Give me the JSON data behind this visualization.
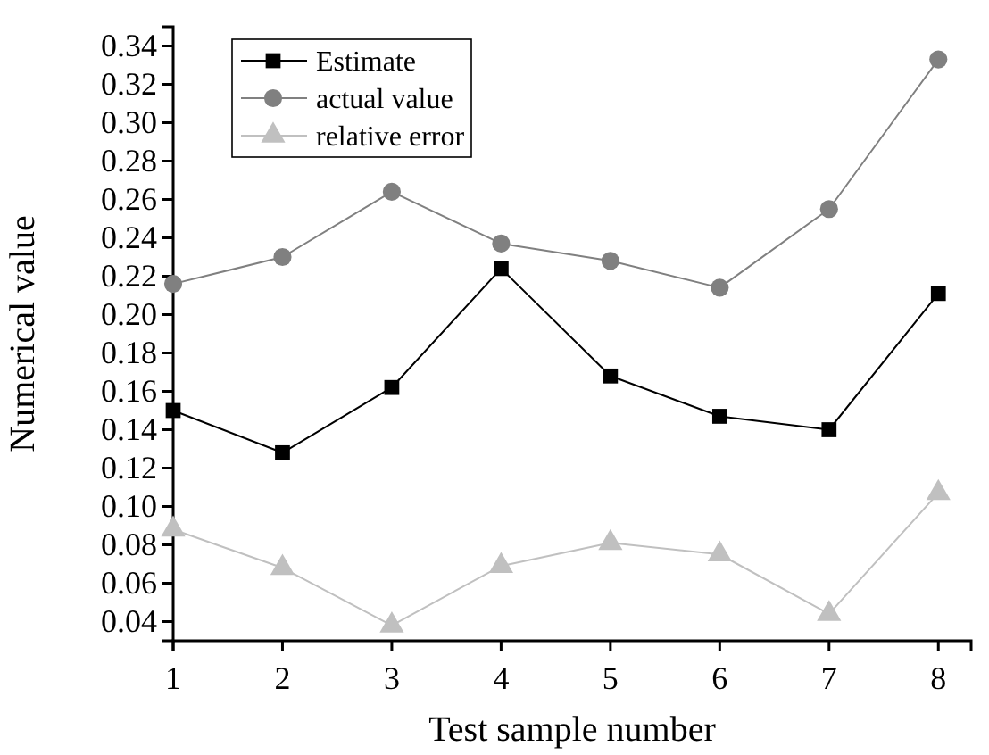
{
  "chart_data": {
    "type": "line",
    "xlabel": "Test sample number",
    "ylabel": "Numerical value",
    "x": [
      1,
      2,
      3,
      4,
      5,
      6,
      7,
      8
    ],
    "series": [
      {
        "name": "Estimate",
        "color": "#000000",
        "marker": "square",
        "values": [
          0.15,
          0.128,
          0.162,
          0.224,
          0.168,
          0.147,
          0.14,
          0.211
        ]
      },
      {
        "name": "actual value",
        "color": "#808080",
        "marker": "circle",
        "values": [
          0.216,
          0.23,
          0.264,
          0.237,
          0.228,
          0.214,
          0.255,
          0.333
        ]
      },
      {
        "name": "relative error",
        "color": "#c0c0c0",
        "marker": "triangle",
        "values": [
          0.088,
          0.068,
          0.038,
          0.069,
          0.081,
          0.075,
          0.044,
          0.107
        ]
      }
    ],
    "xlim": [
      1,
      8.3
    ],
    "xticks": [
      1,
      2,
      3,
      4,
      5,
      6,
      7,
      8
    ],
    "ylim": [
      0.03,
      0.35
    ],
    "yticks": [
      0.04,
      0.06,
      0.08,
      {
        "value": 0.1,
        "label": "0.10"
      },
      0.12,
      0.14,
      0.16,
      0.18,
      {
        "value": 0.2,
        "label": "0.20"
      },
      0.22,
      0.24,
      0.26,
      0.28,
      {
        "value": 0.3,
        "label": "0.30"
      },
      0.32,
      0.34
    ],
    "grid": false,
    "legend": "top left"
  }
}
